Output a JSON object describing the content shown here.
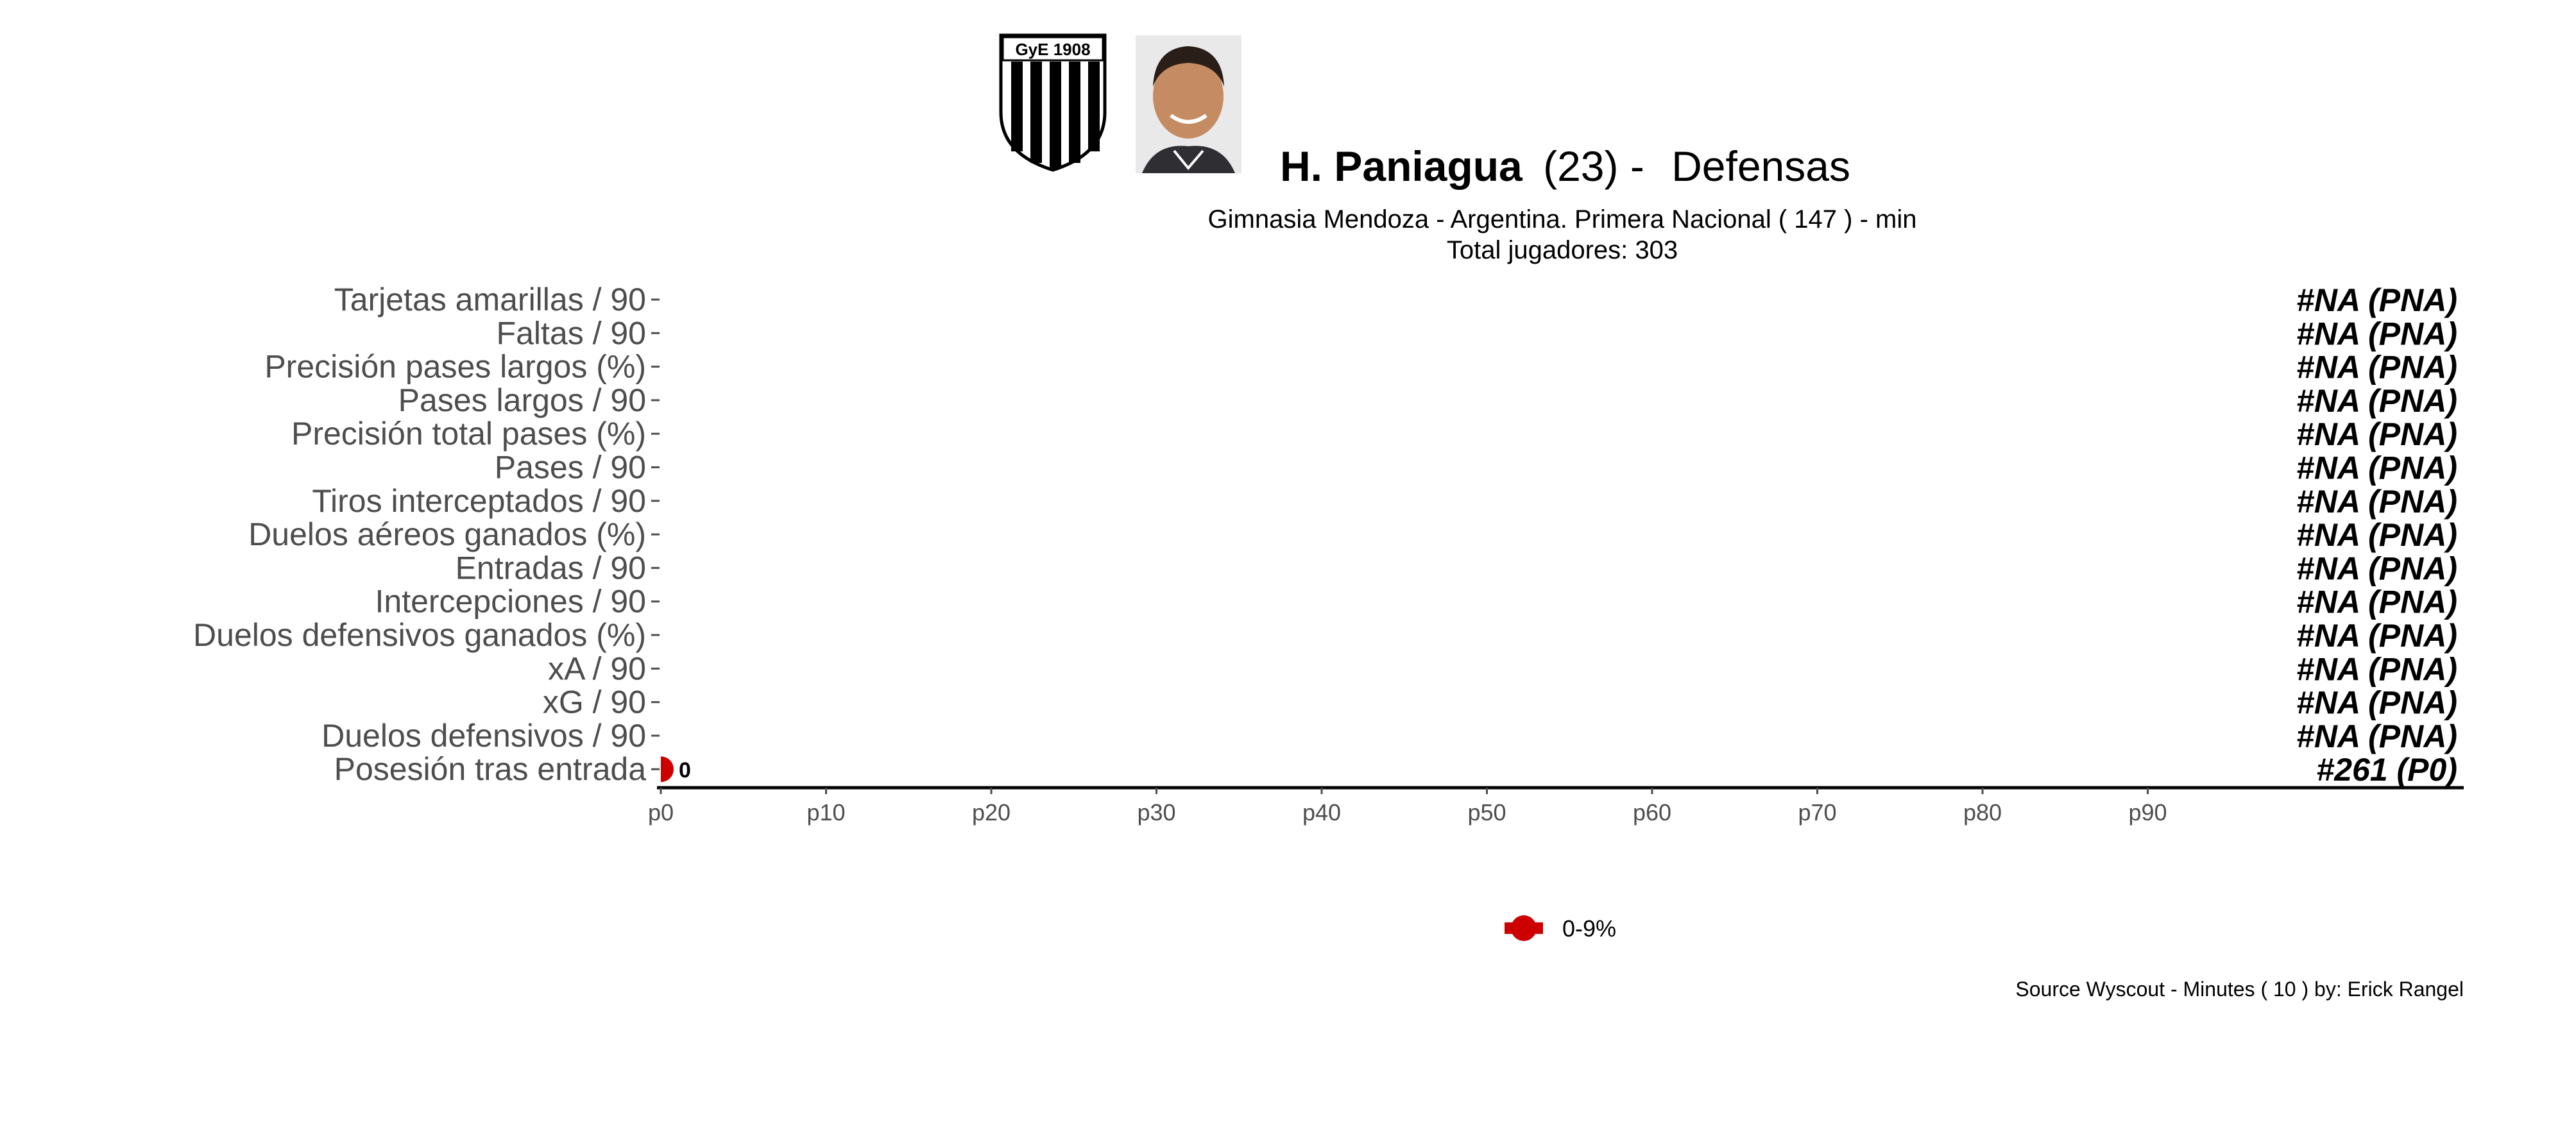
{
  "header": {
    "badge_text": "GyE 1908",
    "player_name": "H. Paniagua",
    "player_age": "(23) -",
    "position": "Defensas",
    "subtitle": "Gimnasia Mendoza  -  Argentina. Primera Nacional  ( 147 ) - min",
    "total_players": "Total jugadores:  303"
  },
  "chart_data": {
    "type": "lollipop",
    "categories": [
      "Tarjetas amarillas / 90",
      "Faltas / 90",
      "Precisión pases largos (%)",
      "Pases largos / 90",
      "Precisión total pases (%)",
      "Pases / 90",
      "Tiros interceptados / 90",
      "Duelos aéreos ganados (%)",
      "Entradas / 90",
      "Intercepciones / 90",
      "Duelos defensivos ganados (%)",
      "xA / 90",
      "xG / 90",
      "Duelos defensivos / 90",
      "Posesión tras entrada"
    ],
    "values": [
      null,
      null,
      null,
      null,
      null,
      null,
      null,
      null,
      null,
      null,
      null,
      null,
      null,
      null,
      0
    ],
    "value_labels": [
      "",
      "",
      "",
      "",
      "",
      "",
      "",
      "",
      "",
      "",
      "",
      "",
      "",
      "",
      "0"
    ],
    "rank_labels": [
      "#NA (PNA)",
      "#NA (PNA)",
      "#NA (PNA)",
      "#NA (PNA)",
      "#NA (PNA)",
      "#NA (PNA)",
      "#NA (PNA)",
      "#NA (PNA)",
      "#NA (PNA)",
      "#NA (PNA)",
      "#NA (PNA)",
      "#NA (PNA)",
      "#NA (PNA)",
      "#NA (PNA)",
      "#261 (P0)"
    ],
    "x_ticks": [
      "p0",
      "p10",
      "p20",
      "p30",
      "p40",
      "p50",
      "p60",
      "p70",
      "p80",
      "p90"
    ],
    "xlim": [
      0,
      109
    ],
    "legend": {
      "label": "0-9%",
      "color": "#cc0000",
      "placement": "bottom"
    },
    "point_color": "#cc0000"
  },
  "footer": {
    "source": "Source Wyscout - Minutes ( 10 ) by: Erick Rangel"
  }
}
